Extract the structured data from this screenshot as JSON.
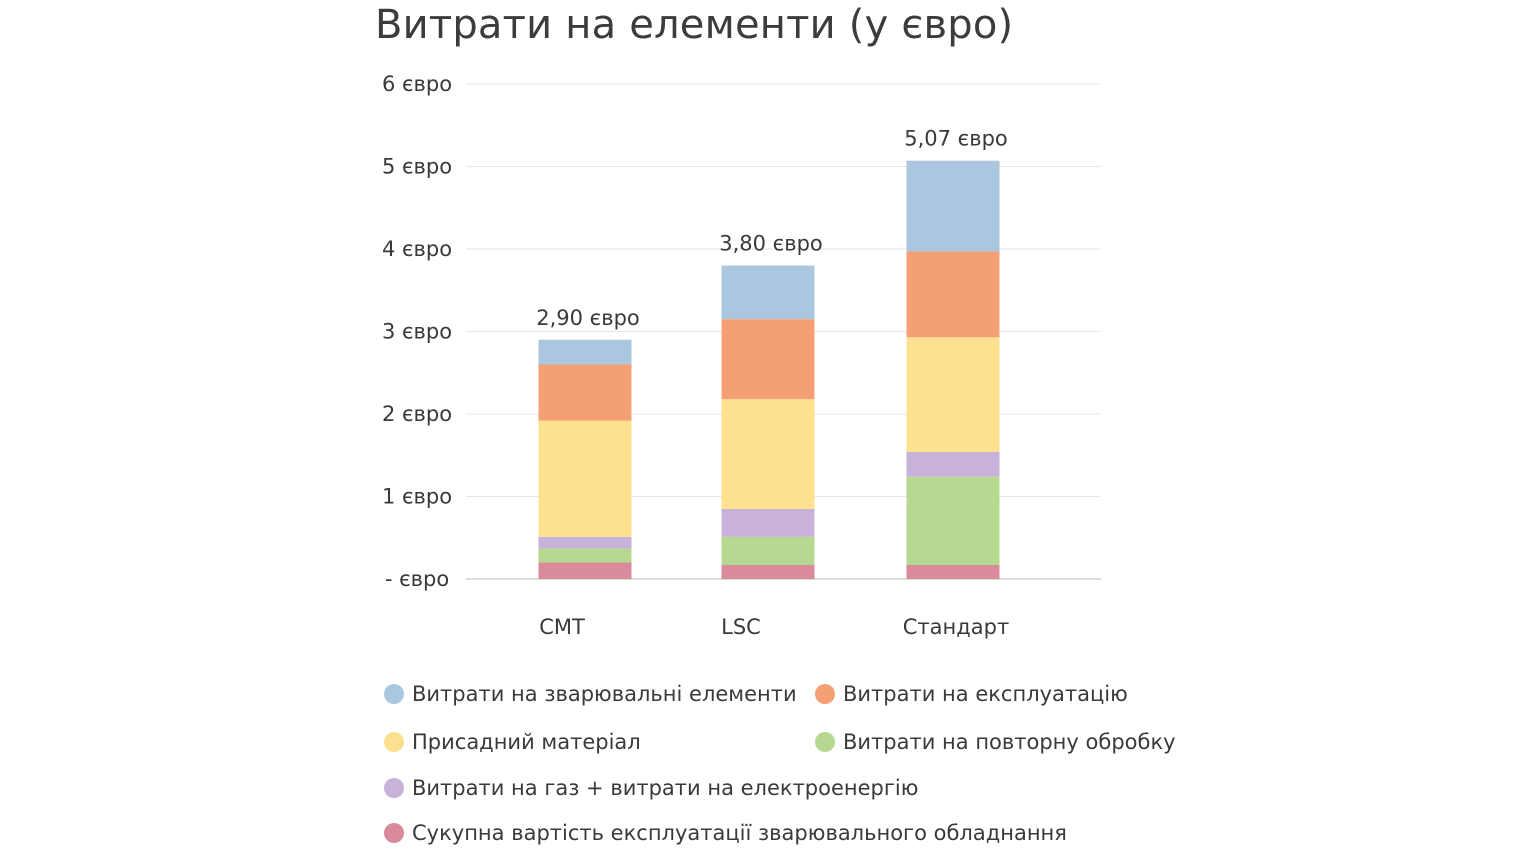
{
  "chart_data": {
    "type": "bar",
    "stacked": true,
    "title": "Витрати на елементи (у євро)",
    "xlabel": "",
    "ylabel": "",
    "categories": [
      "CMT",
      "LSC",
      "Стандарт"
    ],
    "ylim": [
      0,
      6
    ],
    "yticks": [
      {
        "value": 0,
        "label": "- євро"
      },
      {
        "value": 1,
        "label": "1 євро"
      },
      {
        "value": 2,
        "label": "2 євро"
      },
      {
        "value": 3,
        "label": "3 євро"
      },
      {
        "value": 4,
        "label": "4 євро"
      },
      {
        "value": 5,
        "label": "5 євро"
      },
      {
        "value": 6,
        "label": "6 євро"
      }
    ],
    "totals": [
      2.9,
      3.8,
      5.07
    ],
    "total_labels": [
      "2,90 євро",
      "3,80 євро",
      "5,07 євро"
    ],
    "series": [
      {
        "name": "Сукупна вартість експлуатації зварювального обладнання",
        "color": "#d98a9b",
        "values": [
          0.2,
          0.17,
          0.17
        ]
      },
      {
        "name": "Витрати на повторну обробку",
        "color": "#b6d890",
        "values": [
          0.17,
          0.34,
          1.07
        ]
      },
      {
        "name": "Витрати на газ + витрати на електроенергію",
        "color": "#c9b2da",
        "values": [
          0.14,
          0.34,
          0.3
        ]
      },
      {
        "name": "Присадний матеріал",
        "color": "#fee18e",
        "values": [
          1.41,
          1.33,
          1.39
        ]
      },
      {
        "name": "Витрати на експлуатацію",
        "color": "#f4a074",
        "values": [
          0.68,
          0.97,
          1.04
        ]
      },
      {
        "name": "Витрати на зварювальні елементи",
        "color": "#abc7e0",
        "values": [
          0.3,
          0.65,
          1.1
        ]
      }
    ],
    "legend_order": [
      5,
      4,
      3,
      1,
      2,
      0
    ],
    "grid": true,
    "legend_position": "bottom"
  }
}
